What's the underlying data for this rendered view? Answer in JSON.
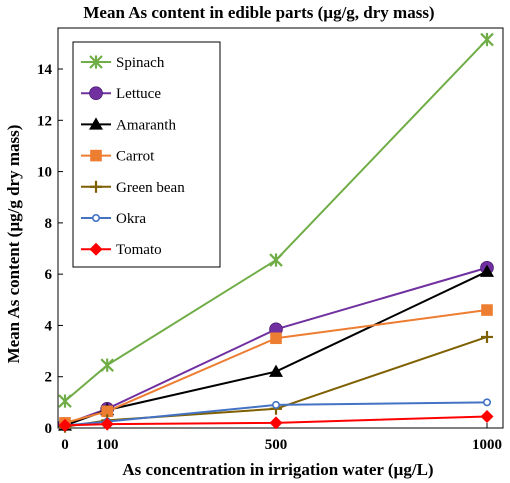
{
  "chart_data": {
    "type": "line",
    "title": "Mean As content in edible parts (µg/g, dry mass)",
    "xlabel": "As concentration in irrigation water (µg/L)",
    "ylabel": "Mean As content (µg/g dry mass)",
    "x": [
      0,
      100,
      500,
      1000
    ],
    "x_ticks": [
      0,
      100,
      500,
      1000
    ],
    "y_ticks": [
      0,
      2,
      4,
      6,
      8,
      10,
      12,
      14
    ],
    "xlim": [
      0,
      1000
    ],
    "ylim": [
      0,
      15.6
    ],
    "grid": false,
    "legend_position": "top-left",
    "series": [
      {
        "name": "Spinach",
        "color": "#70AD47",
        "marker": "x-star",
        "values": [
          1.05,
          2.45,
          6.55,
          15.15
        ]
      },
      {
        "name": "Lettuce",
        "color": "#7030A0",
        "marker": "circle",
        "values": [
          0.15,
          0.75,
          3.85,
          6.25
        ]
      },
      {
        "name": "Amaranth",
        "color": "#000000",
        "marker": "triangle",
        "values": [
          0.1,
          0.7,
          2.2,
          6.1
        ]
      },
      {
        "name": "Carrot",
        "color": "#ED7D31",
        "marker": "square",
        "values": [
          0.2,
          0.65,
          3.5,
          4.6
        ]
      },
      {
        "name": "Green bean",
        "color": "#7F6000",
        "marker": "plus",
        "values": [
          0.05,
          0.3,
          0.75,
          3.55
        ]
      },
      {
        "name": "Okra",
        "color": "#4472C4",
        "marker": "circle-small",
        "values": [
          0.1,
          0.25,
          0.9,
          1.0
        ]
      },
      {
        "name": "Tomato",
        "color": "#FF0000",
        "marker": "diamond",
        "values": [
          0.1,
          0.15,
          0.2,
          0.45
        ]
      }
    ]
  }
}
